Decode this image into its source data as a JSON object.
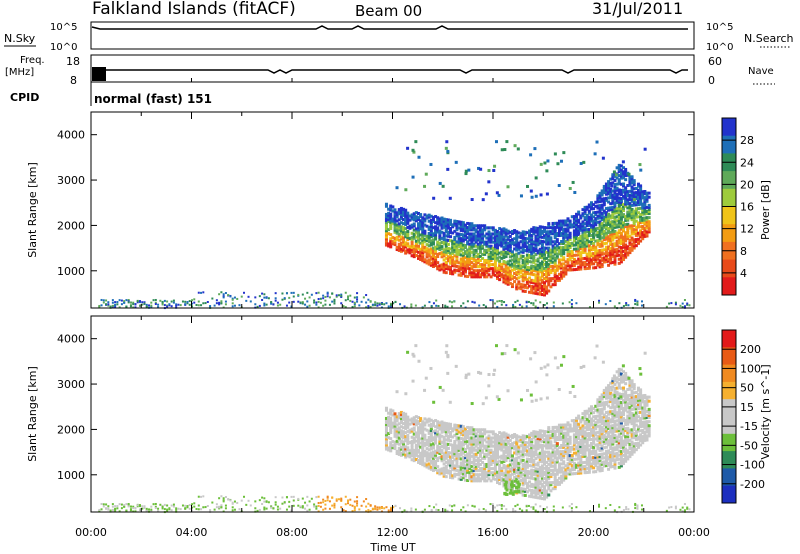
{
  "header": {
    "station": "Falkland Islands (fitACF)",
    "beam": "Beam 00",
    "date": "31/Jul/2011"
  },
  "top_panels": {
    "nsky_label": "N.Sky",
    "nsearch_label": "N.Search",
    "freq_label_1": "Freq.",
    "freq_label_2": "[MHz]",
    "nave_label": "Nave",
    "cpid_label": "CPID",
    "cpid_value": "normal (fast) 151",
    "noise_ticks": [
      "10^5",
      "10^0"
    ],
    "freq_ticks": [
      "18",
      "8"
    ],
    "nave_ticks": [
      "60",
      "0"
    ]
  },
  "colors": {
    "power": [
      "#2233cc",
      "#1e6fb8",
      "#2e8b57",
      "#5faa5a",
      "#9ecb3c",
      "#f0c419",
      "#f39c12",
      "#f07020",
      "#e84a1a",
      "#e21b1b"
    ],
    "velocity": [
      "#1c2fbf",
      "#1e5aa8",
      "#2e8b57",
      "#6cbf3a",
      "#c8c8c8",
      "#c8c8c8",
      "#f5b030",
      "#f08a20",
      "#e85a15",
      "#e31a1a"
    ]
  },
  "chart_data": [
    {
      "type": "heatmap",
      "name": "power-panel",
      "xlabel": "Time UT",
      "ylabel": "Slant Range [km]",
      "colorbar_label": "Power [dB]",
      "colorbar_ticks": [
        "28",
        "24",
        "20",
        "16",
        "12",
        "8",
        "4"
      ],
      "y_ticks": [
        1000,
        2000,
        3000,
        4000
      ],
      "ylim": [
        180,
        4500
      ],
      "x_ticks": [
        "00:00",
        "04:00",
        "08:00",
        "12:00",
        "16:00",
        "20:00",
        "00:00"
      ],
      "xlim_hours": [
        0,
        24
      ],
      "scatter_region": {
        "start_hour": 11.7,
        "end_hour": 22.2,
        "lower_edge_km": [
          [
            11.7,
            1600
          ],
          [
            13,
            1300
          ],
          [
            14,
            1000
          ],
          [
            15,
            900
          ],
          [
            16,
            900
          ],
          [
            17,
            600
          ],
          [
            18,
            500
          ],
          [
            19,
            1050
          ],
          [
            20,
            1100
          ],
          [
            21,
            1200
          ],
          [
            22,
            1800
          ]
        ],
        "upper_edge_km": [
          [
            11.7,
            2500
          ],
          [
            13,
            2300
          ],
          [
            15,
            2100
          ],
          [
            17,
            1900
          ],
          [
            19,
            2200
          ],
          [
            20,
            2600
          ],
          [
            21,
            3400
          ],
          [
            22,
            2800
          ]
        ]
      }
    },
    {
      "type": "heatmap",
      "name": "velocity-panel",
      "xlabel": "Time UT",
      "ylabel": "Slant Range [km]",
      "colorbar_label": "Velocity [m s^-1]",
      "colorbar_ticks": [
        "200",
        "100",
        "50",
        "15",
        "-15",
        "-50",
        "-100",
        "-200"
      ],
      "y_ticks": [
        1000,
        2000,
        3000,
        4000
      ],
      "ylim": [
        180,
        4500
      ],
      "x_ticks": [
        "00:00",
        "04:00",
        "08:00",
        "12:00",
        "16:00",
        "20:00",
        "00:00"
      ],
      "xlim_hours": [
        0,
        24
      ]
    }
  ]
}
